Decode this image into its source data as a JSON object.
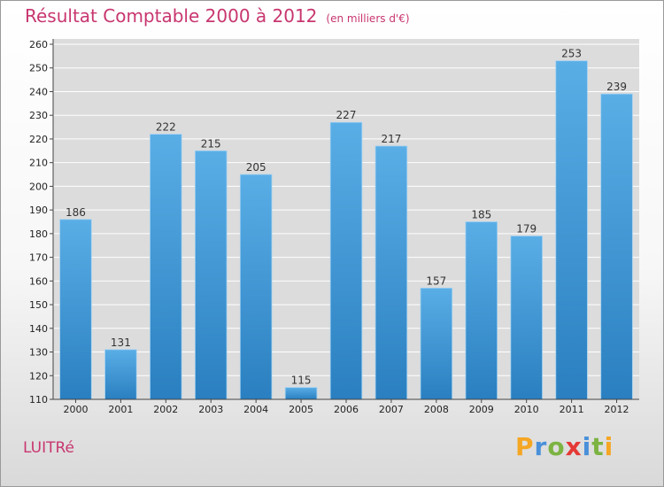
{
  "title": "Résultat Comptable 2000 à 2012",
  "subtitle": "(en milliers d'€)",
  "commune": "LUITRé",
  "brand": {
    "letters": [
      "P",
      "r",
      "o",
      "x",
      "i",
      "t",
      "i"
    ],
    "colors": [
      "#f5a623",
      "#4a90d9",
      "#7cb342",
      "#e53935",
      "#4a90d9",
      "#7cb342",
      "#f5a623"
    ]
  },
  "colors": {
    "bar": "#3a93d6",
    "bar_light": "#5aaee6",
    "title": "#c8366f"
  },
  "chart_data": {
    "type": "bar",
    "title": "Résultat Comptable 2000 à 2012",
    "categories": [
      "2000",
      "2001",
      "2002",
      "2003",
      "2004",
      "2005",
      "2006",
      "2007",
      "2008",
      "2009",
      "2010",
      "2011",
      "2012"
    ],
    "values": [
      186,
      131,
      222,
      215,
      205,
      115,
      227,
      217,
      157,
      185,
      179,
      253,
      239
    ],
    "xlabel": "",
    "ylabel": "",
    "ylim": [
      110,
      260
    ],
    "yticks": [
      110,
      120,
      130,
      140,
      150,
      160,
      170,
      180,
      190,
      200,
      210,
      220,
      230,
      240,
      250,
      260
    ],
    "grid": true
  }
}
